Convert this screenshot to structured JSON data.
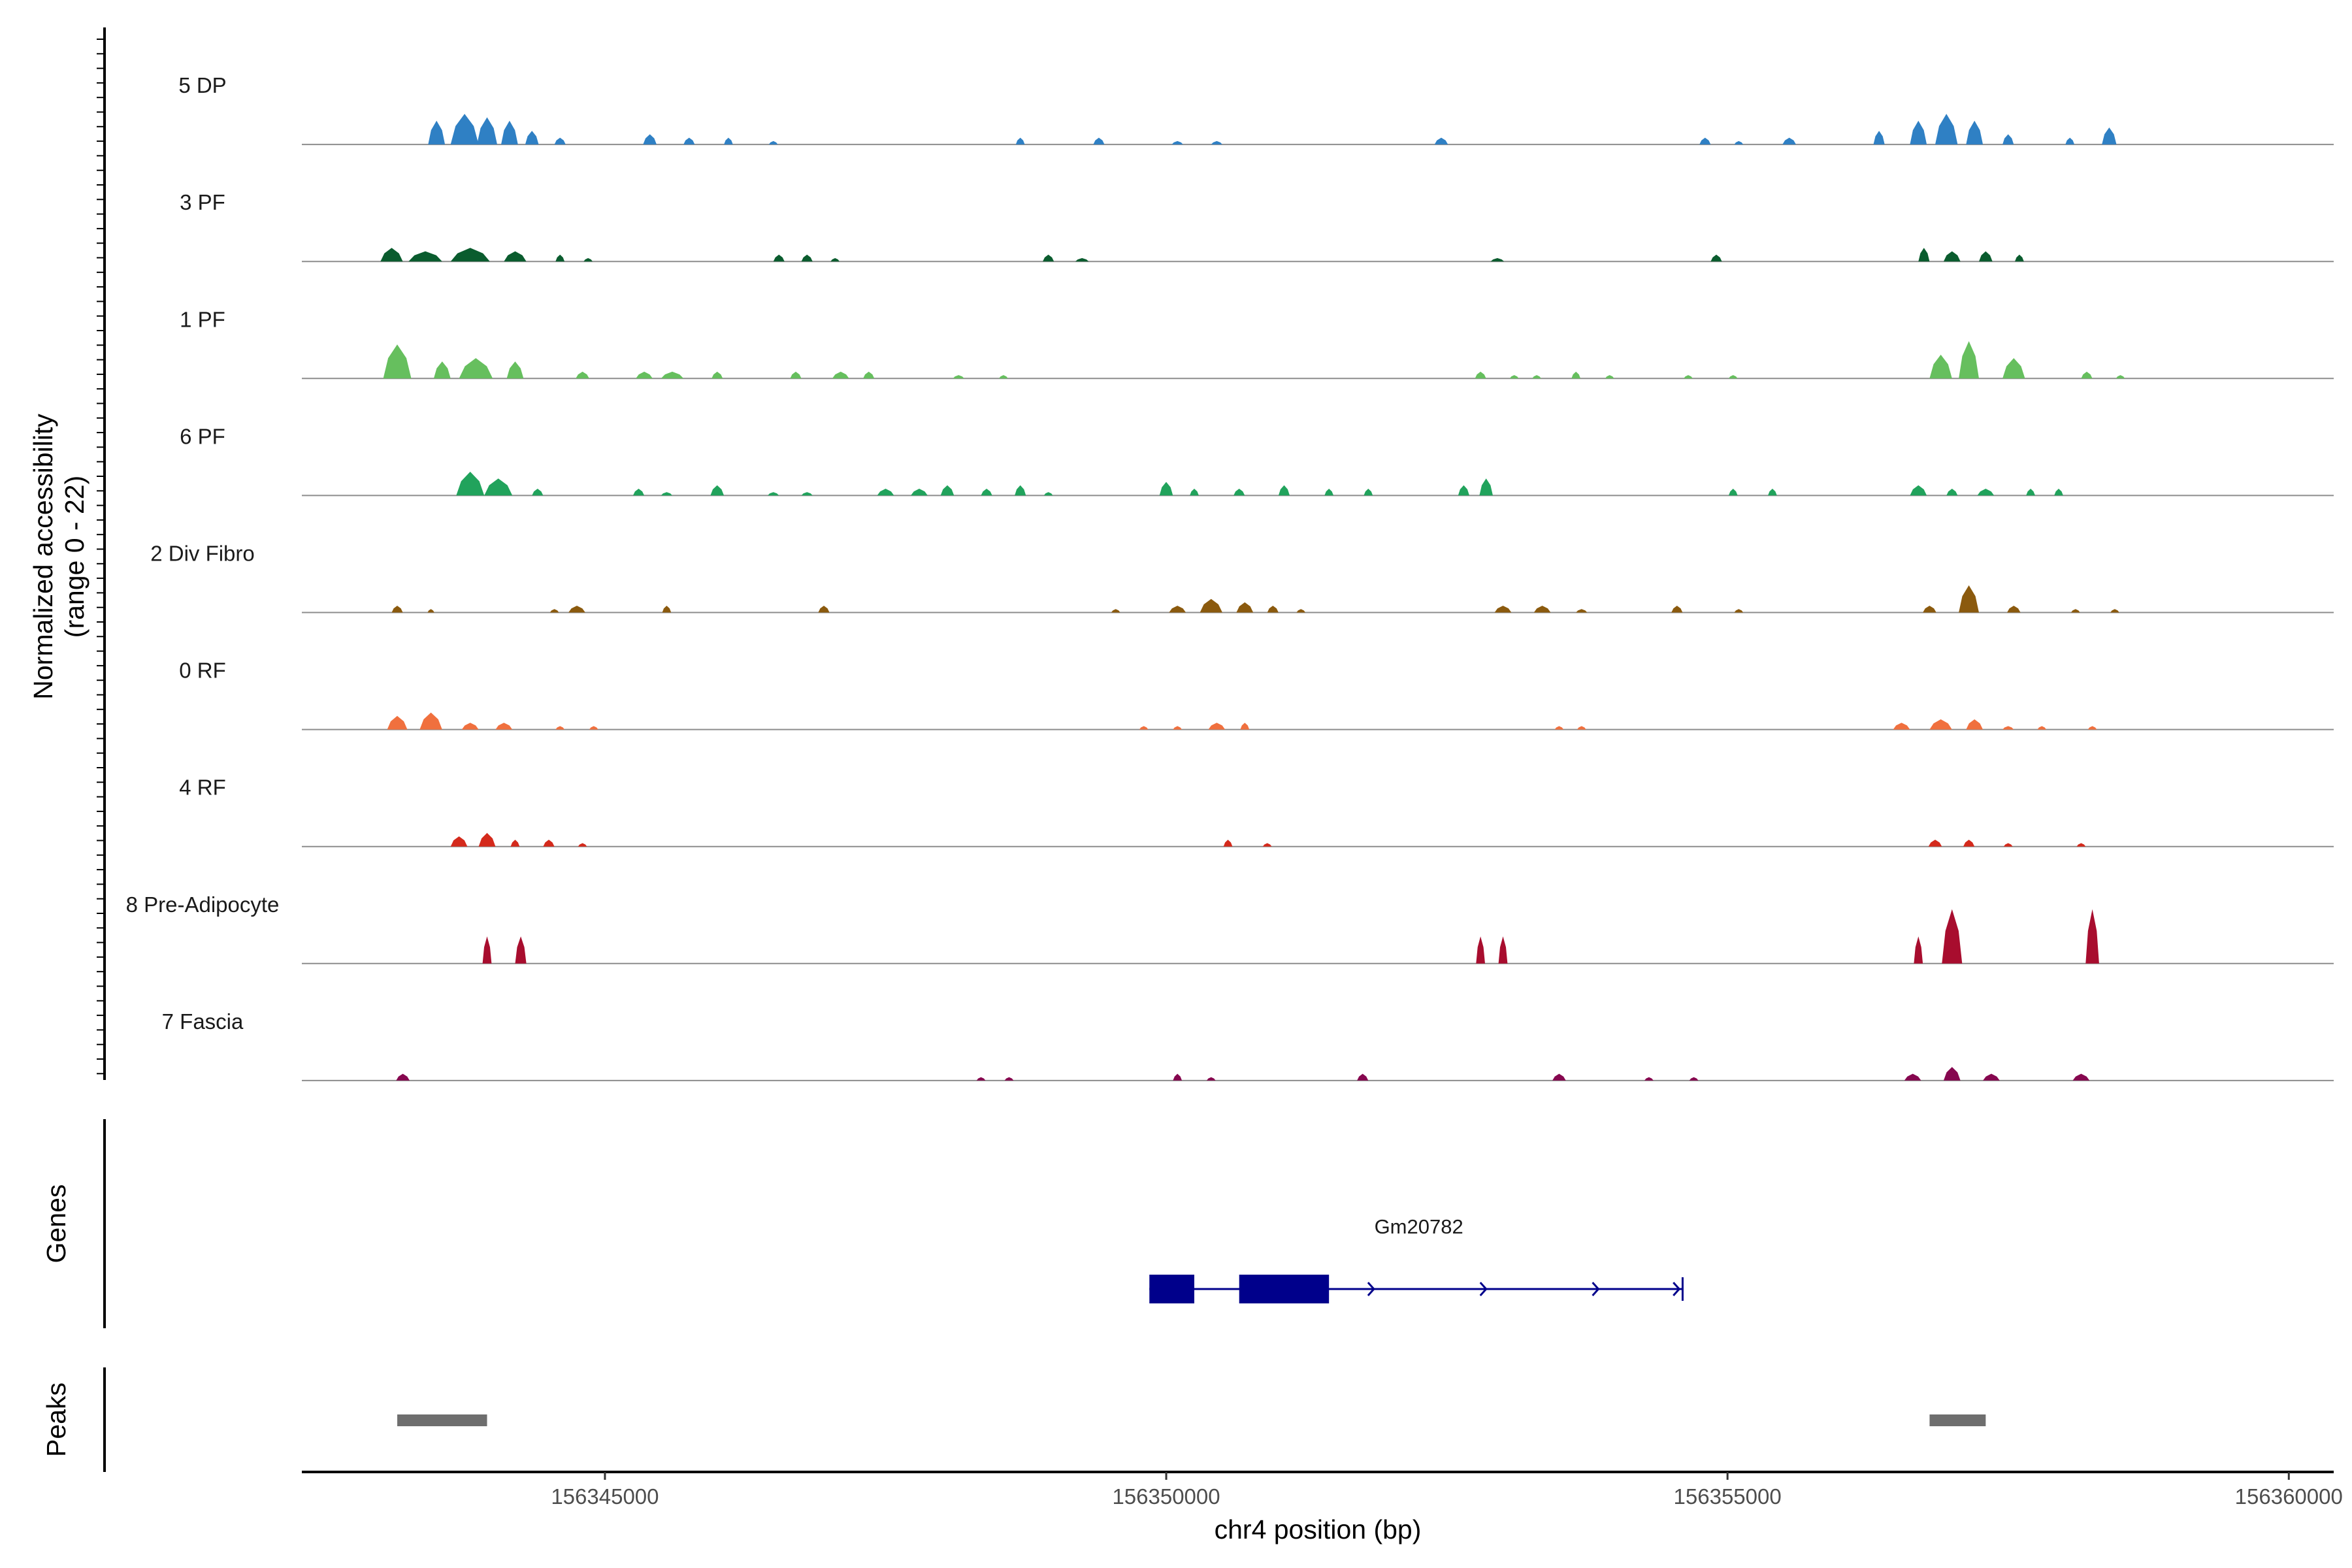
{
  "chart_data": {
    "type": "area",
    "title": "",
    "ylabel": "Normalized accessibility",
    "ylabel_range": "(range 0 - 22)",
    "ylim": [
      0,
      22
    ],
    "xlabel": "chr4 position (bp)",
    "xlim": [
      156342300,
      156360400
    ],
    "x_ticks": [
      156345000,
      156350000,
      156355000,
      156360000
    ],
    "x_tick_labels": [
      "156345000",
      "156350000",
      "156355000",
      "156360000"
    ],
    "tracks": [
      {
        "name": "5 DP",
        "color": "#2f80c4",
        "peaks": [
          [
            156343500,
            150,
            7
          ],
          [
            156343750,
            250,
            9
          ],
          [
            156343950,
            180,
            8
          ],
          [
            156344150,
            150,
            7
          ],
          [
            156344350,
            120,
            4
          ],
          [
            156344600,
            100,
            2
          ],
          [
            156345400,
            120,
            3
          ],
          [
            156345750,
            100,
            2
          ],
          [
            156346100,
            80,
            2
          ],
          [
            156346500,
            80,
            1
          ],
          [
            156348700,
            80,
            2
          ],
          [
            156349400,
            100,
            2
          ],
          [
            156350100,
            100,
            1
          ],
          [
            156350450,
            100,
            1
          ],
          [
            156352450,
            120,
            2
          ],
          [
            156354800,
            100,
            2
          ],
          [
            156355100,
            80,
            1
          ],
          [
            156355550,
            120,
            2
          ],
          [
            156356350,
            100,
            4
          ],
          [
            156356700,
            150,
            7
          ],
          [
            156356950,
            200,
            9
          ],
          [
            156357200,
            150,
            7
          ],
          [
            156357500,
            100,
            3
          ],
          [
            156358050,
            80,
            2
          ],
          [
            156358400,
            130,
            5
          ]
        ]
      },
      {
        "name": "3 PF",
        "color": "#0a5c2e",
        "peaks": [
          [
            156343100,
            200,
            4
          ],
          [
            156343400,
            300,
            3
          ],
          [
            156343800,
            350,
            4
          ],
          [
            156344200,
            200,
            3
          ],
          [
            156344600,
            80,
            2
          ],
          [
            156344850,
            80,
            1
          ],
          [
            156346550,
            100,
            2
          ],
          [
            156346800,
            100,
            2
          ],
          [
            156347050,
            80,
            1
          ],
          [
            156348950,
            100,
            2
          ],
          [
            156349250,
            120,
            1
          ],
          [
            156352950,
            120,
            1
          ],
          [
            156354900,
            100,
            2
          ],
          [
            156356750,
            100,
            4
          ],
          [
            156357000,
            150,
            3
          ],
          [
            156357300,
            120,
            3
          ],
          [
            156357600,
            80,
            2
          ]
        ]
      },
      {
        "name": "1 PF",
        "color": "#66bf5e",
        "peaks": [
          [
            156343150,
            250,
            10
          ],
          [
            156343550,
            150,
            5
          ],
          [
            156343850,
            300,
            6
          ],
          [
            156344200,
            150,
            5
          ],
          [
            156344800,
            120,
            2
          ],
          [
            156345350,
            150,
            2
          ],
          [
            156345600,
            200,
            2
          ],
          [
            156346000,
            100,
            2
          ],
          [
            156346700,
            100,
            2
          ],
          [
            156347100,
            150,
            2
          ],
          [
            156347350,
            100,
            2
          ],
          [
            156348150,
            100,
            1
          ],
          [
            156348550,
            80,
            1
          ],
          [
            156352800,
            100,
            2
          ],
          [
            156353100,
            80,
            1
          ],
          [
            156353300,
            80,
            1
          ],
          [
            156353650,
            80,
            2
          ],
          [
            156353950,
            80,
            1
          ],
          [
            156354650,
            80,
            1
          ],
          [
            156355050,
            80,
            1
          ],
          [
            156356900,
            200,
            7
          ],
          [
            156357150,
            180,
            11
          ],
          [
            156357550,
            200,
            6
          ],
          [
            156358200,
            100,
            2
          ],
          [
            156358500,
            80,
            1
          ]
        ]
      },
      {
        "name": "6 PF",
        "color": "#21a35c",
        "peaks": [
          [
            156343800,
            250,
            7
          ],
          [
            156344050,
            250,
            5
          ],
          [
            156344400,
            100,
            2
          ],
          [
            156345300,
            100,
            2
          ],
          [
            156345550,
            100,
            1
          ],
          [
            156346000,
            120,
            3
          ],
          [
            156346500,
            100,
            1
          ],
          [
            156346800,
            100,
            1
          ],
          [
            156347500,
            150,
            2
          ],
          [
            156347800,
            150,
            2
          ],
          [
            156348050,
            120,
            3
          ],
          [
            156348400,
            100,
            2
          ],
          [
            156348700,
            100,
            3
          ],
          [
            156348950,
            80,
            1
          ],
          [
            156350000,
            120,
            4
          ],
          [
            156350250,
            80,
            2
          ],
          [
            156350650,
            100,
            2
          ],
          [
            156351050,
            100,
            3
          ],
          [
            156351450,
            80,
            2
          ],
          [
            156351800,
            80,
            2
          ],
          [
            156352650,
            100,
            3
          ],
          [
            156352850,
            120,
            5
          ],
          [
            156355050,
            80,
            2
          ],
          [
            156355400,
            80,
            2
          ],
          [
            156356700,
            150,
            3
          ],
          [
            156357000,
            100,
            2
          ],
          [
            156357300,
            150,
            2
          ],
          [
            156357700,
            80,
            2
          ],
          [
            156357950,
            80,
            2
          ]
        ]
      },
      {
        "name": "2 Div Fibro",
        "color": "#8b5a0e",
        "peaks": [
          [
            156343150,
            100,
            2
          ],
          [
            156343450,
            60,
            1
          ],
          [
            156344550,
            80,
            1
          ],
          [
            156344750,
            150,
            2
          ],
          [
            156345550,
            80,
            2
          ],
          [
            156346950,
            100,
            2
          ],
          [
            156349550,
            80,
            1
          ],
          [
            156350100,
            150,
            2
          ],
          [
            156350400,
            200,
            4
          ],
          [
            156350700,
            150,
            3
          ],
          [
            156350950,
            100,
            2
          ],
          [
            156351200,
            80,
            1
          ],
          [
            156353000,
            150,
            2
          ],
          [
            156353350,
            150,
            2
          ],
          [
            156353700,
            100,
            1
          ],
          [
            156354550,
            100,
            2
          ],
          [
            156355100,
            80,
            1
          ],
          [
            156356800,
            120,
            2
          ],
          [
            156357150,
            180,
            8
          ],
          [
            156357550,
            120,
            2
          ],
          [
            156358100,
            80,
            1
          ],
          [
            156358450,
            80,
            1
          ]
        ]
      },
      {
        "name": "0 RF",
        "color": "#f0703e",
        "peaks": [
          [
            156343150,
            180,
            4
          ],
          [
            156343450,
            200,
            5
          ],
          [
            156343800,
            150,
            2
          ],
          [
            156344100,
            150,
            2
          ],
          [
            156344600,
            80,
            1
          ],
          [
            156344900,
            80,
            1
          ],
          [
            156349800,
            80,
            1
          ],
          [
            156350100,
            80,
            1
          ],
          [
            156350450,
            150,
            2
          ],
          [
            156350700,
            80,
            2
          ],
          [
            156353500,
            80,
            1
          ],
          [
            156353700,
            80,
            1
          ],
          [
            156356550,
            150,
            2
          ],
          [
            156356900,
            200,
            3
          ],
          [
            156357200,
            150,
            3
          ],
          [
            156357500,
            100,
            1
          ],
          [
            156357800,
            80,
            1
          ],
          [
            156358250,
            80,
            1
          ]
        ]
      },
      {
        "name": "4 RF",
        "color": "#d42a1c",
        "peaks": [
          [
            156343700,
            150,
            3
          ],
          [
            156343950,
            150,
            4
          ],
          [
            156344200,
            80,
            2
          ],
          [
            156344500,
            100,
            2
          ],
          [
            156344800,
            80,
            1
          ],
          [
            156350550,
            80,
            2
          ],
          [
            156350900,
            80,
            1
          ],
          [
            156356850,
            120,
            2
          ],
          [
            156357150,
            100,
            2
          ],
          [
            156357500,
            80,
            1
          ],
          [
            156358150,
            80,
            1
          ]
        ]
      },
      {
        "name": "8 Pre-Adipocyte",
        "color": "#a80d2e",
        "peaks": [
          [
            156343950,
            80,
            8
          ],
          [
            156344250,
            100,
            8
          ],
          [
            156352800,
            80,
            8
          ],
          [
            156353000,
            80,
            8
          ],
          [
            156356700,
            80,
            8
          ],
          [
            156357000,
            180,
            16
          ],
          [
            156358250,
            120,
            16
          ]
        ]
      },
      {
        "name": "7 Fascia",
        "color": "#86074f",
        "peaks": [
          [
            156343200,
            120,
            2
          ],
          [
            156348350,
            80,
            1
          ],
          [
            156348600,
            80,
            1
          ],
          [
            156350100,
            80,
            2
          ],
          [
            156350400,
            80,
            1
          ],
          [
            156351750,
            100,
            2
          ],
          [
            156353500,
            120,
            2
          ],
          [
            156354300,
            80,
            1
          ],
          [
            156354700,
            80,
            1
          ],
          [
            156356650,
            150,
            2
          ],
          [
            156357000,
            150,
            4
          ],
          [
            156357350,
            150,
            2
          ],
          [
            156358150,
            150,
            2
          ]
        ]
      }
    ],
    "genes_label": "Genes",
    "gene": {
      "name": "Gm20782",
      "color": "#00008b",
      "start": 156349850,
      "end": 156354600,
      "exons": [
        [
          156349850,
          156350250
        ],
        [
          156350650,
          156351450
        ]
      ],
      "strand": "+"
    },
    "peaks_label": "Peaks",
    "peak_regions": [
      [
        156343150,
        156343950
      ],
      [
        156356800,
        156357300
      ]
    ],
    "peak_color": "#6e6e6e"
  }
}
